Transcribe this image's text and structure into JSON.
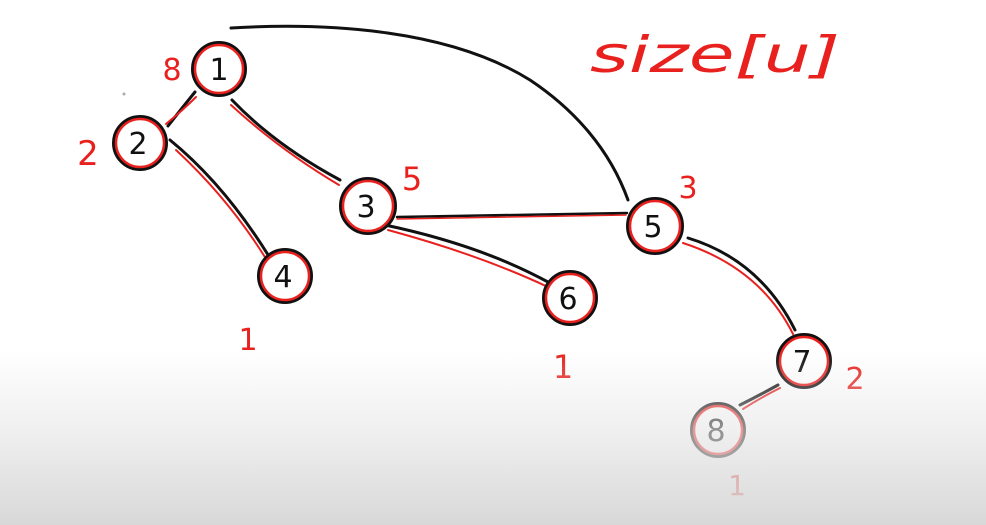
{
  "title": "size[u]",
  "colors": {
    "ink_black": "#111111",
    "ink_red": "#e8211e",
    "background": "#ffffff",
    "bottom_fade": "#d6d6d6"
  },
  "nodes": [
    {
      "id": "1",
      "label": "1",
      "size": "8"
    },
    {
      "id": "2",
      "label": "2",
      "size": "2"
    },
    {
      "id": "3",
      "label": "3",
      "size": "5"
    },
    {
      "id": "4",
      "label": "4",
      "size": "1"
    },
    {
      "id": "5",
      "label": "5",
      "size": "3"
    },
    {
      "id": "6",
      "label": "6",
      "size": "1"
    },
    {
      "id": "7",
      "label": "7",
      "size": "2"
    },
    {
      "id": "8",
      "label": "8",
      "size": "1"
    }
  ],
  "edges": [
    {
      "from": "1",
      "to": "2"
    },
    {
      "from": "1",
      "to": "3"
    },
    {
      "from": "2",
      "to": "4"
    },
    {
      "from": "3",
      "to": "6"
    },
    {
      "from": "3",
      "to": "5"
    },
    {
      "from": "1",
      "to": "5"
    },
    {
      "from": "5",
      "to": "7"
    },
    {
      "from": "7",
      "to": "8"
    }
  ]
}
